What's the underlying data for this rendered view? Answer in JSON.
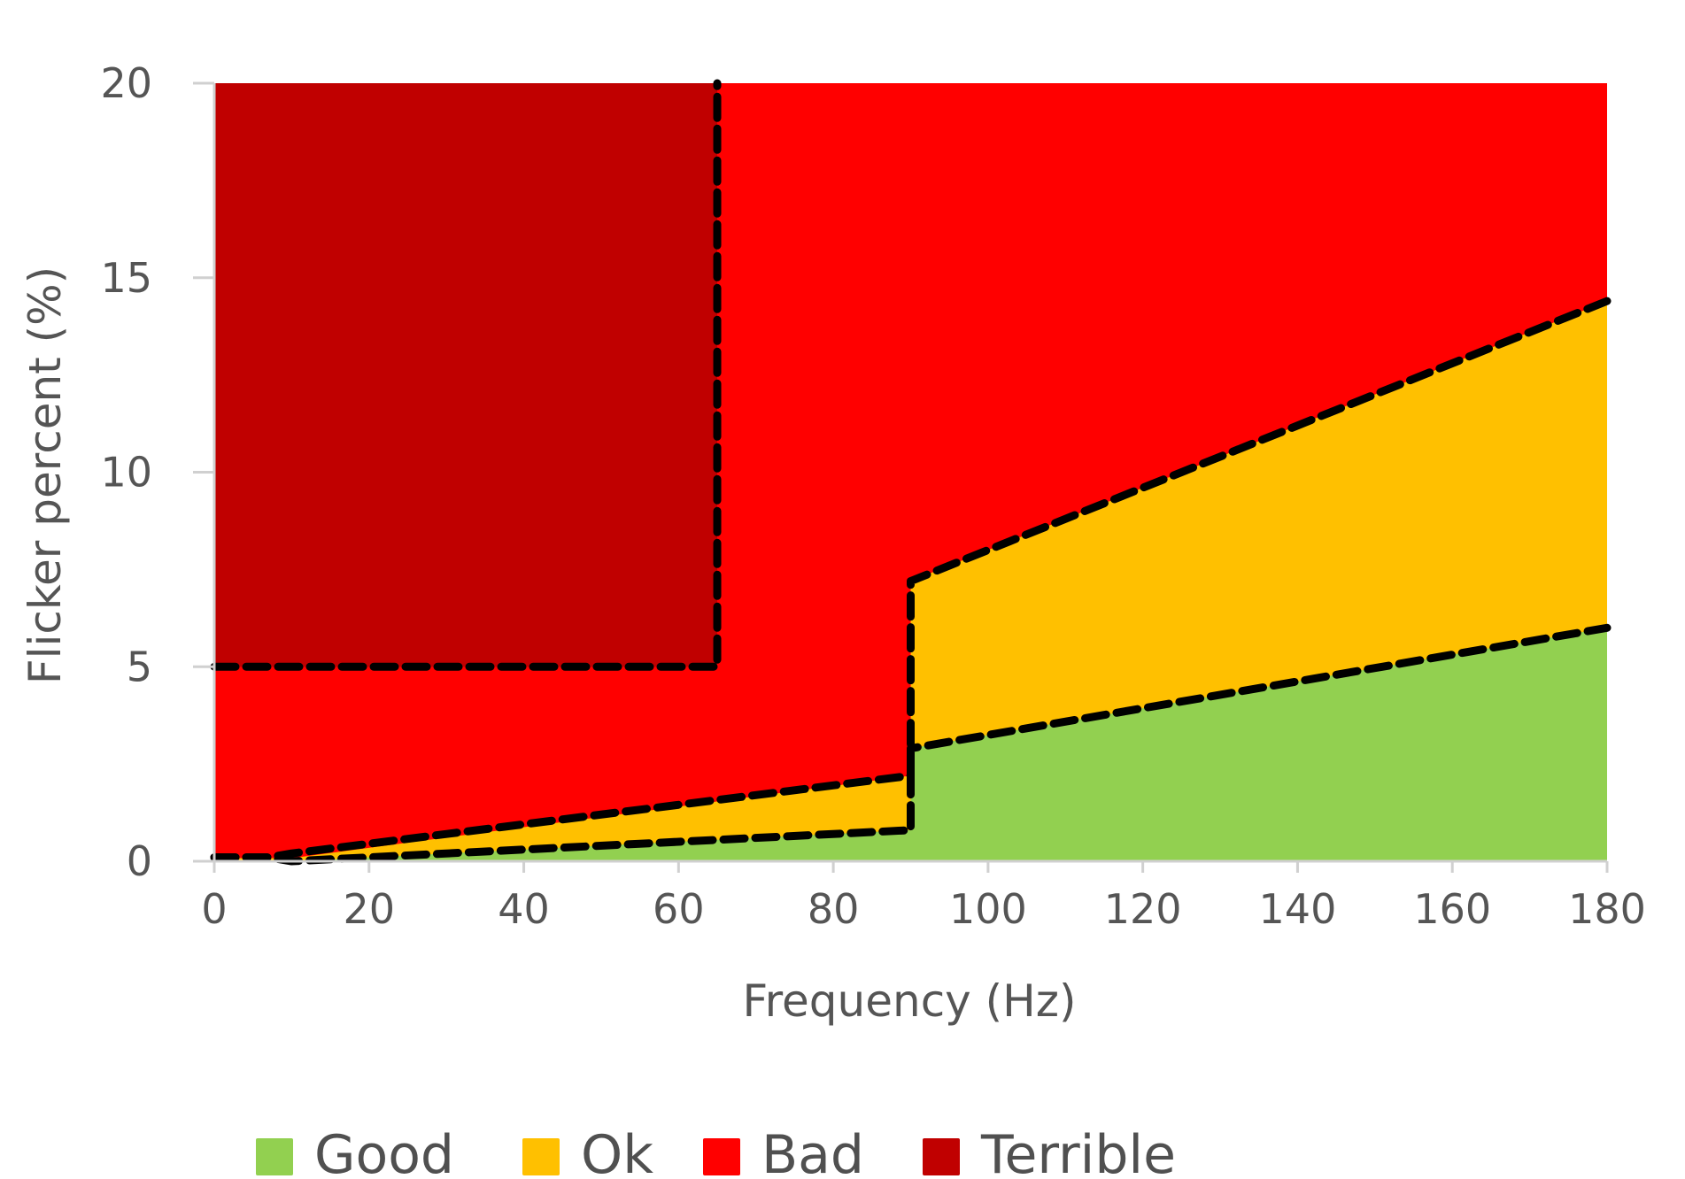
{
  "chart_data": {
    "type": "area",
    "xlabel": "Frequency (Hz)",
    "ylabel": "Flicker percent (%)",
    "xlim": [
      0,
      180
    ],
    "ylim": [
      0,
      20
    ],
    "x_ticks": [
      "0",
      "20",
      "40",
      "60",
      "80",
      "100",
      "120",
      "140",
      "160",
      "180"
    ],
    "y_ticks": [
      "0",
      "5",
      "10",
      "15",
      "20"
    ],
    "grid": false,
    "legend_position": "bottom",
    "series": [
      {
        "name": "Good",
        "color": "#92D050",
        "x": [
          0,
          10,
          90,
          90,
          180
        ],
        "y": [
          0,
          0,
          0.8,
          2.9,
          6.0
        ]
      },
      {
        "name": "Ok",
        "color": "#FFC000",
        "x": [
          0,
          10,
          90,
          90,
          180
        ],
        "y": [
          0.08,
          0.08,
          2.2,
          7.2,
          14.4
        ]
      },
      {
        "name": "Bad",
        "color": "#FF0000",
        "x": [
          0,
          180
        ],
        "y": [
          20,
          20
        ]
      },
      {
        "name": "Terrible",
        "color": "#C00000",
        "x": [
          0,
          65
        ],
        "y_range": [
          5,
          20
        ]
      }
    ],
    "boundaries": [
      {
        "x": [
          0,
          7,
          10,
          90,
          90,
          180
        ],
        "y": [
          0.1,
          0.1,
          0,
          0.8,
          2.9,
          6.0
        ]
      },
      {
        "x": [
          0,
          7,
          10,
          90,
          90,
          180
        ],
        "y": [
          0.1,
          0.1,
          0.2,
          2.2,
          7.2,
          14.4
        ]
      },
      {
        "x": [
          0,
          65,
          65
        ],
        "y": [
          5,
          5,
          20
        ]
      }
    ]
  }
}
